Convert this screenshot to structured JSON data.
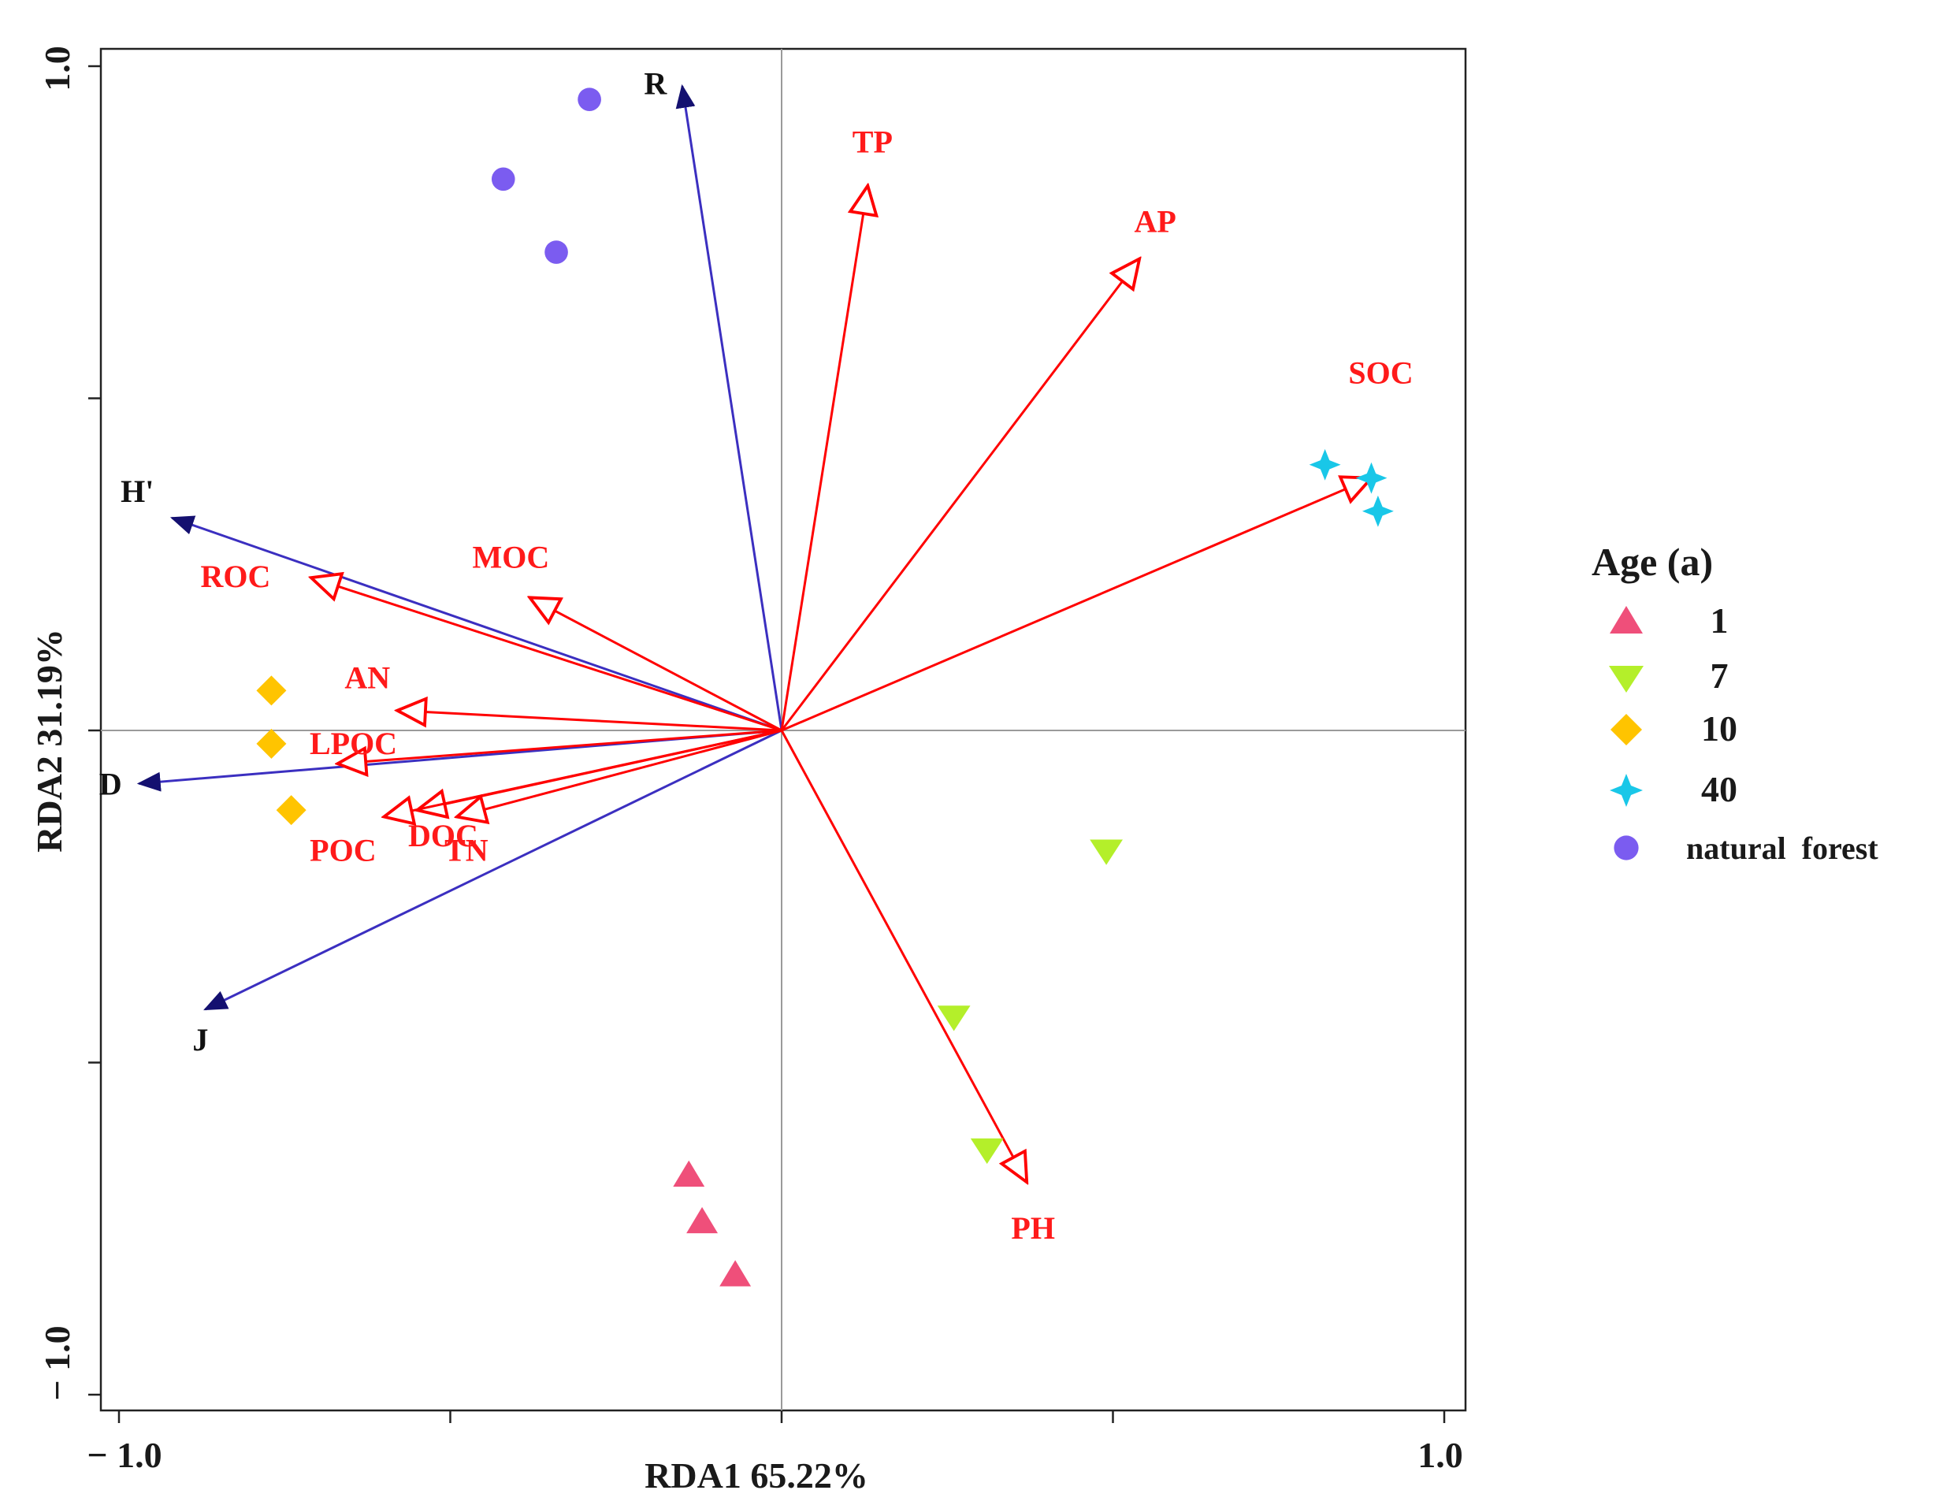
{
  "chart_data": {
    "type": "scatter",
    "subtype": "rda-biplot",
    "xlabel": "RDA1 65.22%",
    "ylabel": "RDA2 31.19%",
    "xlim": [
      -1.0,
      1.0
    ],
    "ylim": [
      -1.0,
      1.0
    ],
    "x_tick_labels": [
      "− 1.0",
      "1.0"
    ],
    "y_tick_labels": [
      "1.0",
      "− 1.0"
    ],
    "x_ticks": [
      -1.0,
      -0.5,
      0.0,
      0.5,
      1.0
    ],
    "y_ticks": [
      1.0,
      0.5,
      0.0,
      -0.5,
      -1.0
    ],
    "zero_lines": true,
    "legend": {
      "title": "Age (a)",
      "position": "right",
      "entries": [
        {
          "label": "1",
          "marker": "triangle-up",
          "color": "#ef4f7a"
        },
        {
          "label": "7",
          "marker": "triangle-down",
          "color": "#b4ef2a"
        },
        {
          "label": "10",
          "marker": "diamond",
          "color": "#ffc400"
        },
        {
          "label": "40",
          "marker": "star4",
          "color": "#19c7e8"
        },
        {
          "label": "natural  forest",
          "marker": "circle",
          "color": "#7b5cf0"
        }
      ]
    },
    "series": [
      {
        "name": "1",
        "marker": "triangle-up",
        "color": "#ef4f7a",
        "points": [
          [
            -0.14,
            -0.67
          ],
          [
            -0.12,
            -0.74
          ],
          [
            -0.07,
            -0.82
          ]
        ]
      },
      {
        "name": "7",
        "marker": "triangle-down",
        "color": "#b4ef2a",
        "points": [
          [
            0.49,
            -0.18
          ],
          [
            0.26,
            -0.43
          ],
          [
            0.31,
            -0.63
          ]
        ]
      },
      {
        "name": "10",
        "marker": "diamond",
        "color": "#ffc400",
        "points": [
          [
            -0.77,
            0.06
          ],
          [
            -0.77,
            -0.02
          ],
          [
            -0.74,
            -0.12
          ]
        ]
      },
      {
        "name": "40",
        "marker": "star4",
        "color": "#19c7e8",
        "points": [
          [
            0.82,
            0.4
          ],
          [
            0.89,
            0.38
          ],
          [
            0.9,
            0.33
          ]
        ]
      },
      {
        "name": "natural  forest",
        "marker": "circle",
        "color": "#7b5cf0",
        "points": [
          [
            -0.29,
            0.95
          ],
          [
            -0.42,
            0.83
          ],
          [
            -0.34,
            0.72
          ]
        ]
      }
    ],
    "environmental_vectors": {
      "color": "#ff0000",
      "arrow_style": "open",
      "items": [
        {
          "name": "TP",
          "x": 0.13,
          "y": 0.82
        },
        {
          "name": "AP",
          "x": 0.54,
          "y": 0.71
        },
        {
          "name": "SOC",
          "x": 0.89,
          "y": 0.38
        },
        {
          "name": "MOC",
          "x": -0.38,
          "y": 0.2
        },
        {
          "name": "ROC",
          "x": -0.71,
          "y": 0.23
        },
        {
          "name": "AN",
          "x": -0.58,
          "y": 0.03
        },
        {
          "name": "LPOC",
          "x": -0.67,
          "y": -0.05
        },
        {
          "name": "DOC",
          "x": -0.55,
          "y": -0.12
        },
        {
          "name": "POC",
          "x": -0.6,
          "y": -0.13
        },
        {
          "name": "TN",
          "x": -0.49,
          "y": -0.13
        },
        {
          "name": "PH",
          "x": 0.37,
          "y": -0.68
        }
      ]
    },
    "response_vectors": {
      "color": "#2a1fa0",
      "arrow_style": "filled",
      "items": [
        {
          "name": "R",
          "x": -0.15,
          "y": 0.97
        },
        {
          "name": "H'",
          "x": -0.92,
          "y": 0.32
        },
        {
          "name": "D",
          "x": -0.97,
          "y": -0.08
        },
        {
          "name": "J",
          "x": -0.87,
          "y": -0.42
        }
      ]
    }
  }
}
